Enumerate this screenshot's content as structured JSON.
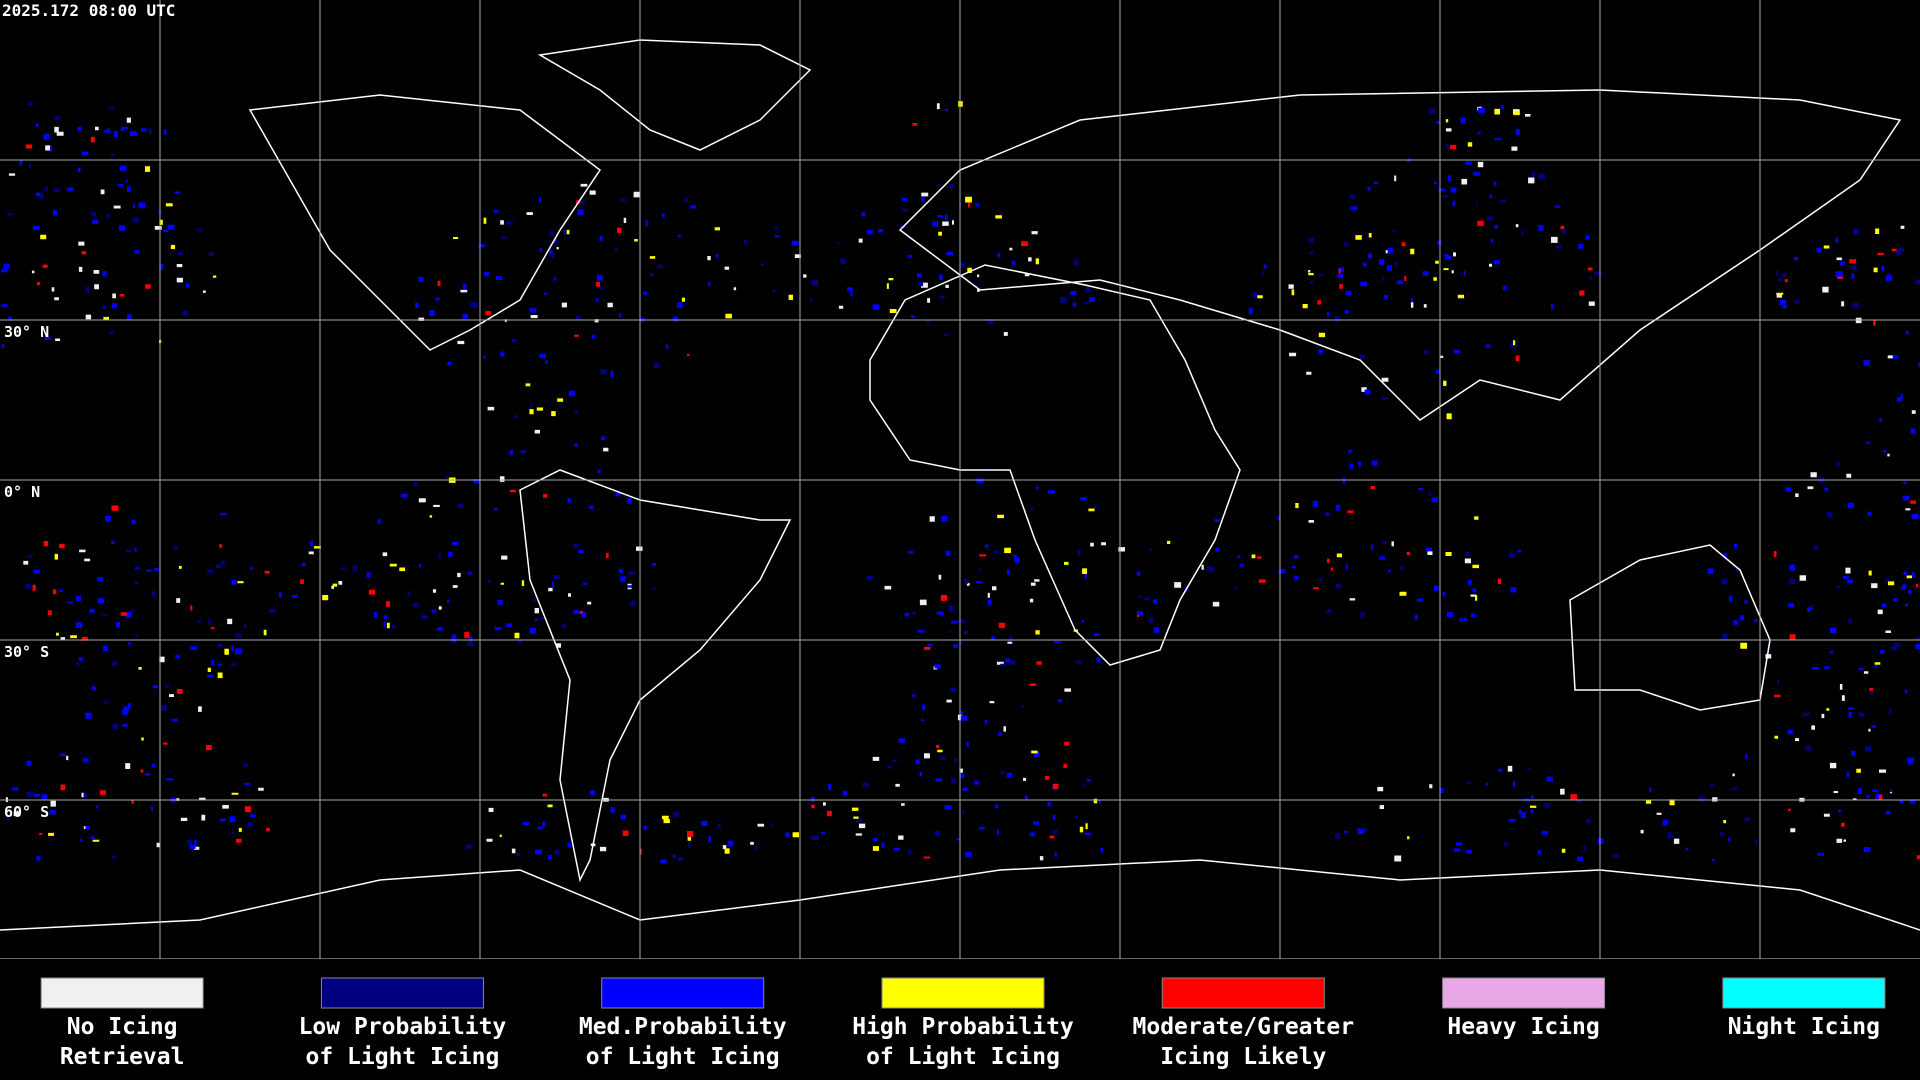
{
  "header": {
    "timestamp": "2025.172 08:00 UTC"
  },
  "map": {
    "latitude_labels": [
      "30° N",
      "0° N",
      "30° S",
      "60° S"
    ]
  },
  "legend": {
    "items": [
      {
        "label": [
          "No Icing",
          "Retrieval"
        ],
        "color": "#f0f0f0"
      },
      {
        "label": [
          "Low Probability",
          "of Light Icing"
        ],
        "color": "#000080"
      },
      {
        "label": [
          "Med.Probability",
          "of Light Icing"
        ],
        "color": "#0000ff"
      },
      {
        "label": [
          "High Probability",
          "of Light Icing"
        ],
        "color": "#ffff00"
      },
      {
        "label": [
          "Moderate/Greater",
          "Icing Likely"
        ],
        "color": "#ff0000"
      },
      {
        "label": [
          "Heavy Icing"
        ],
        "color": "#e8a8e8"
      },
      {
        "label": [
          "Night Icing"
        ],
        "color": "#00ffff"
      }
    ]
  }
}
